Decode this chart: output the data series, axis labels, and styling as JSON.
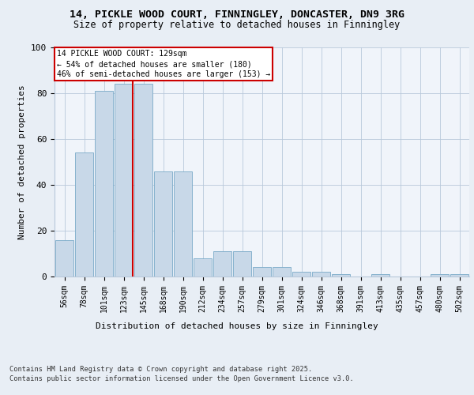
{
  "title_line1": "14, PICKLE WOOD COURT, FINNINGLEY, DONCASTER, DN9 3RG",
  "title_line2": "Size of property relative to detached houses in Finningley",
  "xlabel": "Distribution of detached houses by size in Finningley",
  "ylabel": "Number of detached properties",
  "bar_color": "#c8d8e8",
  "bar_edge_color": "#7aaac8",
  "categories": [
    "56sqm",
    "78sqm",
    "101sqm",
    "123sqm",
    "145sqm",
    "168sqm",
    "190sqm",
    "212sqm",
    "234sqm",
    "257sqm",
    "279sqm",
    "301sqm",
    "324sqm",
    "346sqm",
    "368sqm",
    "391sqm",
    "413sqm",
    "435sqm",
    "457sqm",
    "480sqm",
    "502sqm"
  ],
  "values": [
    16,
    54,
    81,
    84,
    84,
    46,
    46,
    8,
    11,
    11,
    4,
    4,
    2,
    2,
    1,
    0,
    1,
    0,
    0,
    1,
    1
  ],
  "ylim": [
    0,
    100
  ],
  "yticks": [
    0,
    20,
    40,
    60,
    80,
    100
  ],
  "property_label": "14 PICKLE WOOD COURT: 129sqm",
  "annotation_line1": "← 54% of detached houses are smaller (180)",
  "annotation_line2": "46% of semi-detached houses are larger (153) →",
  "vline_bar_index": 3,
  "annotation_box_color": "#ffffff",
  "annotation_box_edge_color": "#cc0000",
  "vline_color": "#cc0000",
  "bg_color": "#e8eef5",
  "plot_bg_color": "#f0f4fa",
  "footer_line1": "Contains HM Land Registry data © Crown copyright and database right 2025.",
  "footer_line2": "Contains public sector information licensed under the Open Government Licence v3.0."
}
